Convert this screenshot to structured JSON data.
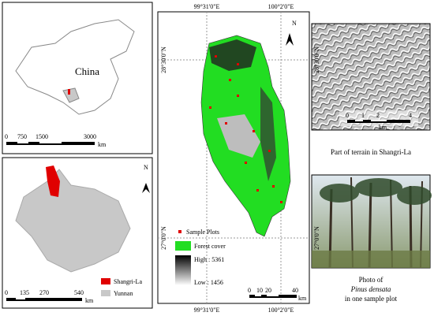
{
  "china_map": {
    "label": "China",
    "scale": {
      "ticks": [
        "0",
        "750",
        "1500",
        "3000"
      ],
      "unit": "km"
    }
  },
  "yunnan_map": {
    "north": "N",
    "scale": {
      "ticks": [
        "0",
        "135",
        "270",
        "540"
      ],
      "unit": "km"
    },
    "legend": [
      "Shangri-La",
      "Yunnan"
    ]
  },
  "study_area": {
    "top_labels": [
      "99°31'0\"E",
      "100°2'0\"E"
    ],
    "bottom_labels": [
      "99°31'0\"E",
      "100°2'0\"E"
    ],
    "left_labels": [
      "28°30'0\"N",
      "27°0'0\"N"
    ],
    "north": "N",
    "legend": {
      "sample": "Sample Plots",
      "forest": "Forest cover",
      "high": "High : 5361",
      "low": "Low : 1456"
    },
    "scale": {
      "ticks": [
        "0",
        "10",
        "20",
        "40"
      ],
      "unit": "km"
    }
  },
  "terrain": {
    "lat_label": "28°30'0\"N",
    "scale": {
      "ticks": [
        "0",
        "1",
        "2",
        "4"
      ],
      "unit": "km"
    },
    "caption": "Part of terrain in Shangri-La"
  },
  "photo": {
    "lat_label": "27°0'0\"N",
    "caption": [
      "Photo of",
      "Pinus densata",
      "in one sample plot"
    ]
  }
}
